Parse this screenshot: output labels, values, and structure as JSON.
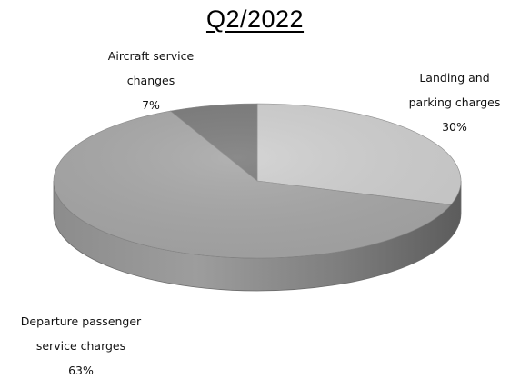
{
  "chart_data": {
    "type": "pie",
    "style": "3d",
    "title": "Q2/2022",
    "slices": [
      {
        "label_lines": [
          "Landing and",
          "parking charges"
        ],
        "value": 30,
        "value_label": "30%",
        "color": "#cfcfcf"
      },
      {
        "label_lines": [
          "Departure passenger",
          "service charges"
        ],
        "value": 63,
        "value_label": "63%",
        "color": "#a7a7a7"
      },
      {
        "label_lines": [
          "Aircraft service",
          "changes"
        ],
        "value": 7,
        "value_label": "7%",
        "color": "#7a7a7a"
      }
    ],
    "legend": "none",
    "grid": false
  }
}
